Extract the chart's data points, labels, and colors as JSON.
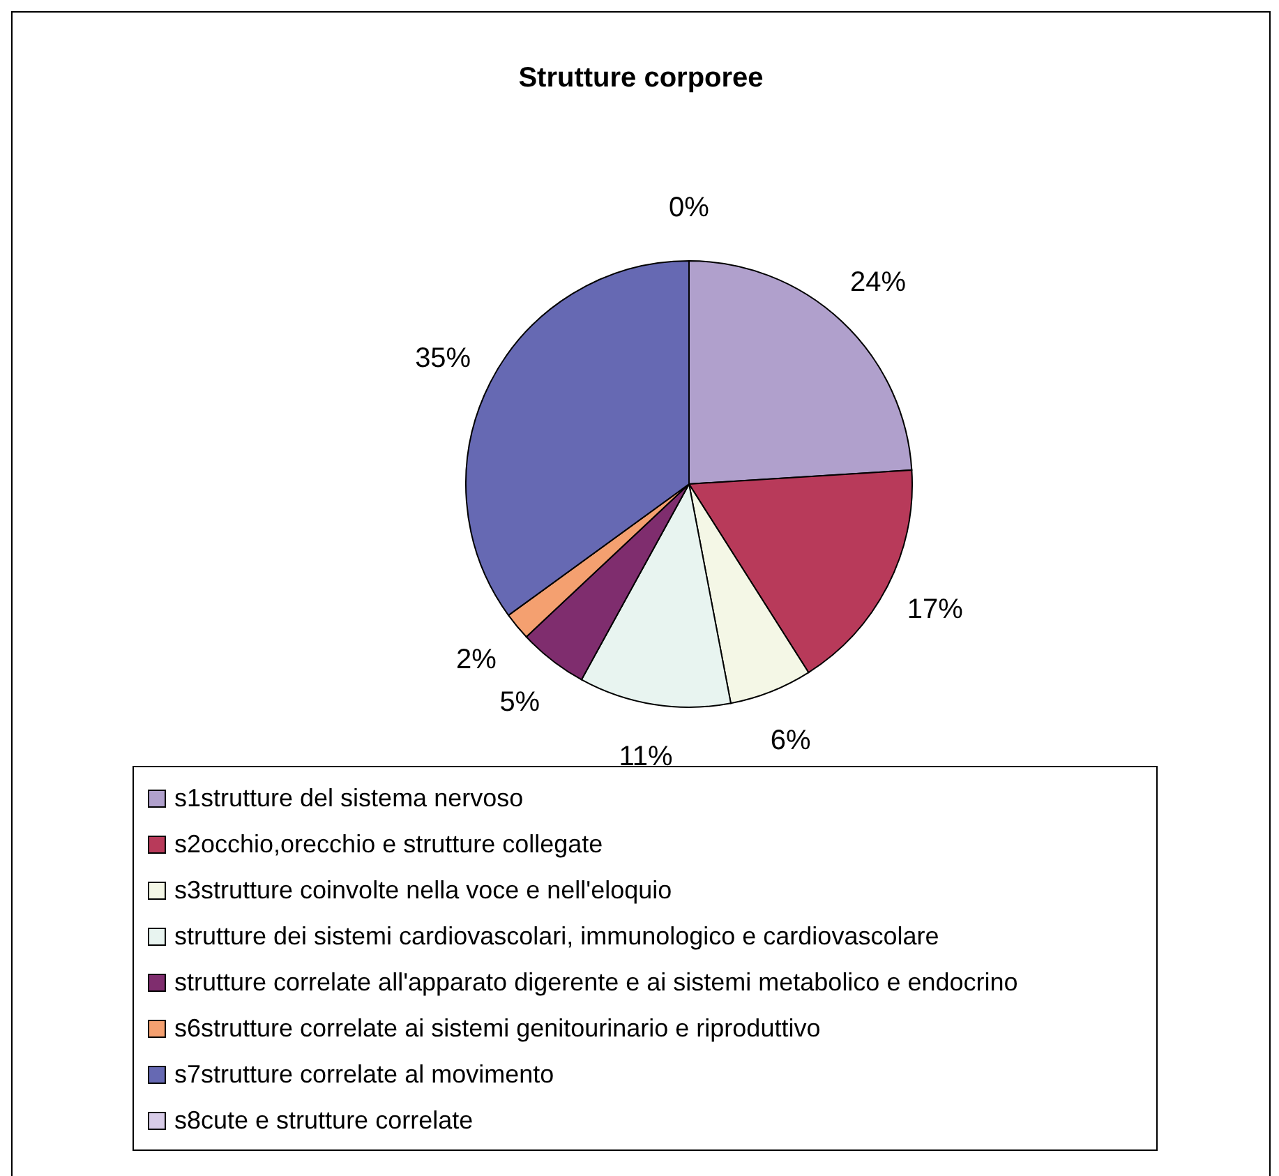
{
  "chart_data": {
    "type": "pie",
    "title": "Strutture corporee",
    "categories": [
      "s1strutture del sistema nervoso",
      "s2occhio,orecchio e strutture collegate",
      "s3strutture coinvolte nella voce e nell'eloquio",
      "strutture dei sistemi cardiovascolari, immunologico e cardiovascolare",
      "strutture correlate all'apparato digerente e ai sistemi metabolico e endocrino",
      "s6strutture correlate ai sistemi genitourinario e riproduttivo",
      "s7strutture correlate al movimento",
      "s8cute e strutture correlate"
    ],
    "values": [
      24,
      17,
      6,
      11,
      5,
      2,
      35,
      0
    ],
    "colors": [
      "#b0a0cc",
      "#b83a5a",
      "#f4f7e6",
      "#e8f4f0",
      "#7f2d6e",
      "#f4a070",
      "#6669b3",
      "#d8cce8"
    ],
    "value_labels": [
      "24%",
      "17%",
      "6%",
      "11%",
      "5%",
      "2%",
      "35%",
      "0%"
    ],
    "legend": "bottom"
  }
}
